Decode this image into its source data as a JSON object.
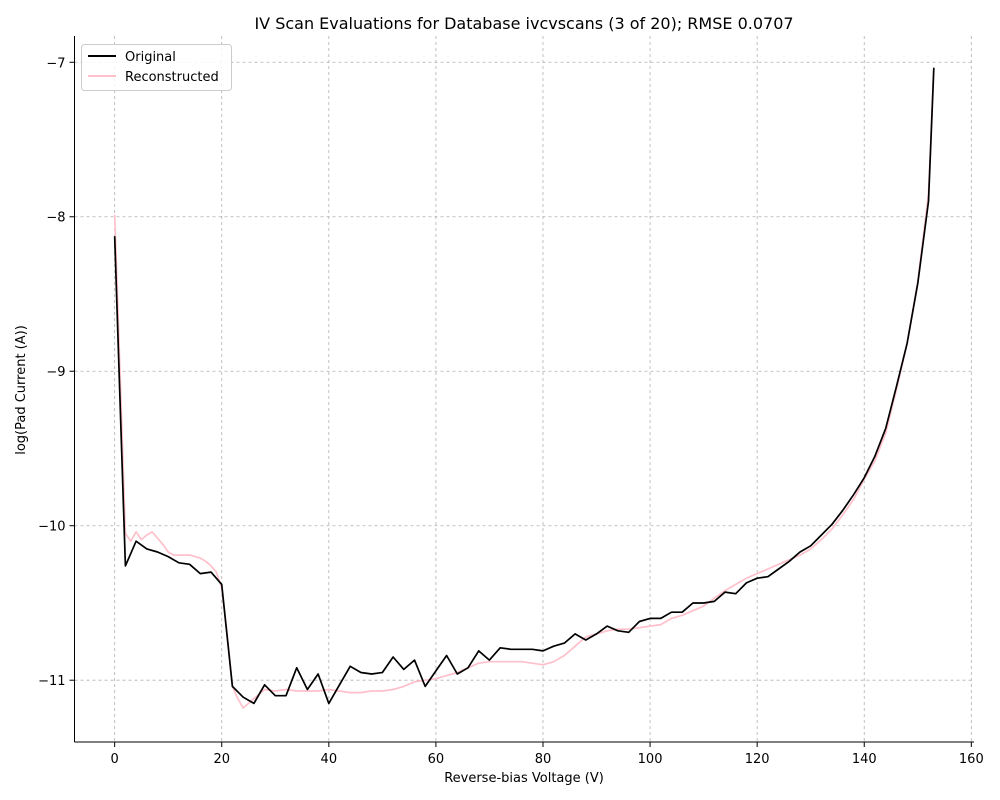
{
  "chart_data": {
    "type": "line",
    "title": "IV Scan Evaluations for Database ivcvscans (3 of 20); RMSE 0.0707",
    "xlabel": "Reverse-bias Voltage (V)",
    "ylabel": "log(Pad Current (A))",
    "xlim": [
      -7.5,
      160.5
    ],
    "ylim": [
      -11.4,
      -6.83
    ],
    "xticks": [
      0,
      20,
      40,
      60,
      80,
      100,
      120,
      140,
      160
    ],
    "yticks": [
      -7,
      -8,
      -9,
      -10,
      -11
    ],
    "ytick_labels": [
      "−7",
      "−8",
      "−9",
      "−10",
      "−11"
    ],
    "grid": true,
    "legend_position": "top-left",
    "series": [
      {
        "name": "Original",
        "color": "#000000",
        "x": [
          0,
          2,
          4,
          6,
          8,
          10,
          12,
          14,
          16,
          18,
          20,
          22,
          24,
          26,
          28,
          30,
          32,
          34,
          36,
          38,
          40,
          42,
          44,
          46,
          48,
          50,
          52,
          54,
          56,
          58,
          60,
          62,
          64,
          66,
          68,
          70,
          72,
          74,
          76,
          78,
          80,
          82,
          84,
          86,
          88,
          90,
          92,
          94,
          96,
          98,
          100,
          102,
          104,
          106,
          108,
          110,
          112,
          114,
          116,
          118,
          120,
          122,
          124,
          126,
          128,
          130,
          132,
          134,
          136,
          138,
          140,
          142,
          144,
          146,
          148,
          150,
          152,
          153
        ],
        "y": [
          -8.13,
          -10.26,
          -10.1,
          -10.15,
          -10.17,
          -10.2,
          -10.24,
          -10.25,
          -10.31,
          -10.3,
          -10.38,
          -11.04,
          -11.11,
          -11.15,
          -11.03,
          -11.1,
          -11.1,
          -10.92,
          -11.06,
          -10.96,
          -11.15,
          -11.03,
          -10.91,
          -10.95,
          -10.96,
          -10.95,
          -10.85,
          -10.93,
          -10.87,
          -11.04,
          -10.94,
          -10.84,
          -10.96,
          -10.92,
          -10.81,
          -10.87,
          -10.79,
          -10.8,
          -10.8,
          -10.8,
          -10.81,
          -10.78,
          -10.76,
          -10.7,
          -10.74,
          -10.7,
          -10.65,
          -10.68,
          -10.69,
          -10.62,
          -10.6,
          -10.6,
          -10.56,
          -10.56,
          -10.5,
          -10.5,
          -10.49,
          -10.43,
          -10.44,
          -10.37,
          -10.34,
          -10.33,
          -10.28,
          -10.23,
          -10.17,
          -10.13,
          -10.06,
          -9.99,
          -9.9,
          -9.8,
          -9.69,
          -9.55,
          -9.37,
          -9.1,
          -8.82,
          -8.43,
          -7.9,
          -7.04
        ]
      },
      {
        "name": "Reconstructed",
        "color": "#ffc0cb",
        "x": [
          0,
          1,
          2,
          3,
          4,
          5,
          6,
          7,
          8,
          9,
          10,
          11,
          12,
          13,
          14,
          15,
          16,
          17,
          18,
          19,
          20,
          21,
          22,
          23,
          24,
          25,
          26,
          28,
          30,
          32,
          34,
          36,
          38,
          40,
          42,
          44,
          46,
          48,
          50,
          52,
          54,
          56,
          58,
          60,
          62,
          64,
          66,
          68,
          70,
          72,
          74,
          76,
          78,
          80,
          82,
          84,
          86,
          88,
          90,
          92,
          94,
          96,
          98,
          100,
          102,
          104,
          106,
          108,
          110,
          112,
          114,
          116,
          118,
          120,
          122,
          124,
          126,
          128,
          130,
          132,
          134,
          136,
          138,
          140,
          142,
          144,
          146,
          148,
          150,
          152,
          153
        ],
        "y": [
          -7.99,
          -9.0,
          -10.05,
          -10.1,
          -10.04,
          -10.09,
          -10.06,
          -10.04,
          -10.08,
          -10.12,
          -10.17,
          -10.19,
          -10.19,
          -10.19,
          -10.19,
          -10.2,
          -10.21,
          -10.23,
          -10.26,
          -10.3,
          -10.4,
          -10.7,
          -11.04,
          -11.12,
          -11.18,
          -11.15,
          -11.12,
          -11.06,
          -11.07,
          -11.06,
          -11.07,
          -11.07,
          -11.07,
          -11.06,
          -11.07,
          -11.08,
          -11.08,
          -11.07,
          -11.07,
          -11.06,
          -11.04,
          -11.01,
          -11.0,
          -10.99,
          -10.97,
          -10.95,
          -10.92,
          -10.89,
          -10.88,
          -10.88,
          -10.88,
          -10.88,
          -10.89,
          -10.9,
          -10.88,
          -10.84,
          -10.78,
          -10.72,
          -10.7,
          -10.68,
          -10.67,
          -10.67,
          -10.66,
          -10.65,
          -10.64,
          -10.6,
          -10.58,
          -10.55,
          -10.52,
          -10.47,
          -10.42,
          -10.38,
          -10.34,
          -10.31,
          -10.28,
          -10.25,
          -10.22,
          -10.19,
          -10.15,
          -10.09,
          -10.02,
          -9.93,
          -9.83,
          -9.7,
          -9.58,
          -9.4,
          -9.12,
          -8.82,
          -8.42,
          -7.85,
          -7.05
        ]
      }
    ]
  }
}
